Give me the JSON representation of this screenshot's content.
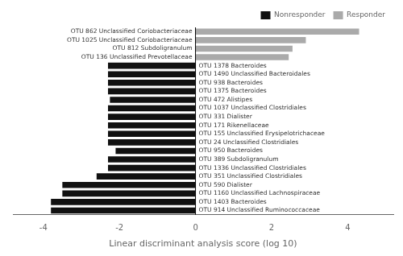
{
  "chart_data": {
    "type": "bar",
    "orientation": "horizontal",
    "xlabel": "Linear discriminant analysis score (log 10)",
    "categories": [
      "OTU 862 Unclassified Coriobacteriaceae",
      "OTU 1025 Unclassified Coriobacteriaceae",
      "OTU 812 Subdoligranulum",
      "OTU 136 Unclassified Prevotellaceae",
      "OTU 1378 Bacteroides",
      "OTU 1490 Unclassified Bacteroidales",
      "OTU 938 Bacteroides",
      "OTU 1375 Bacteroides",
      "OTU 472 Alistipes",
      "OTU 1037 Unclassified Clostridiales",
      "OTU 331 Dialister",
      "OTU 171 Rikenellaceae",
      "OTU 155 Unclassified Erysipelotrichaceae",
      "OTU 24 Unclassified Clostridiales",
      "OTU 950 Bacteroides",
      "OTU 389 Subdoligranulum",
      "OTU 1336 Unclassified Clostridiales",
      "OTU 351 Unclassified Clostridiales",
      "OTU 590 Dialister",
      "OTU 1160 Unclassified Lachnospiraceae",
      "OTU 1403 Bacteroides",
      "OTU 914 Unclassified Ruminococcaceae"
    ],
    "series": [
      {
        "name": "Nonresponder",
        "color": "#111111",
        "values": [
          null,
          null,
          null,
          null,
          -2.3,
          -2.3,
          -2.3,
          -2.3,
          -2.25,
          -2.3,
          -2.3,
          -2.3,
          -2.3,
          -2.3,
          -2.1,
          -2.3,
          -2.3,
          -2.6,
          -3.5,
          -3.5,
          -3.8,
          -3.8
        ]
      },
      {
        "name": "Responder",
        "color": "#aaaaaa",
        "values": [
          4.3,
          2.9,
          2.55,
          2.45,
          null,
          null,
          null,
          null,
          null,
          null,
          null,
          null,
          null,
          null,
          null,
          null,
          null,
          null,
          null,
          null,
          null,
          null
        ]
      }
    ],
    "xlim": [
      -4.8,
      5.2
    ],
    "xticks": [
      -4,
      -2,
      0,
      2,
      4
    ],
    "tick_labels": "x",
    "grid": false,
    "legend": "upper right"
  }
}
